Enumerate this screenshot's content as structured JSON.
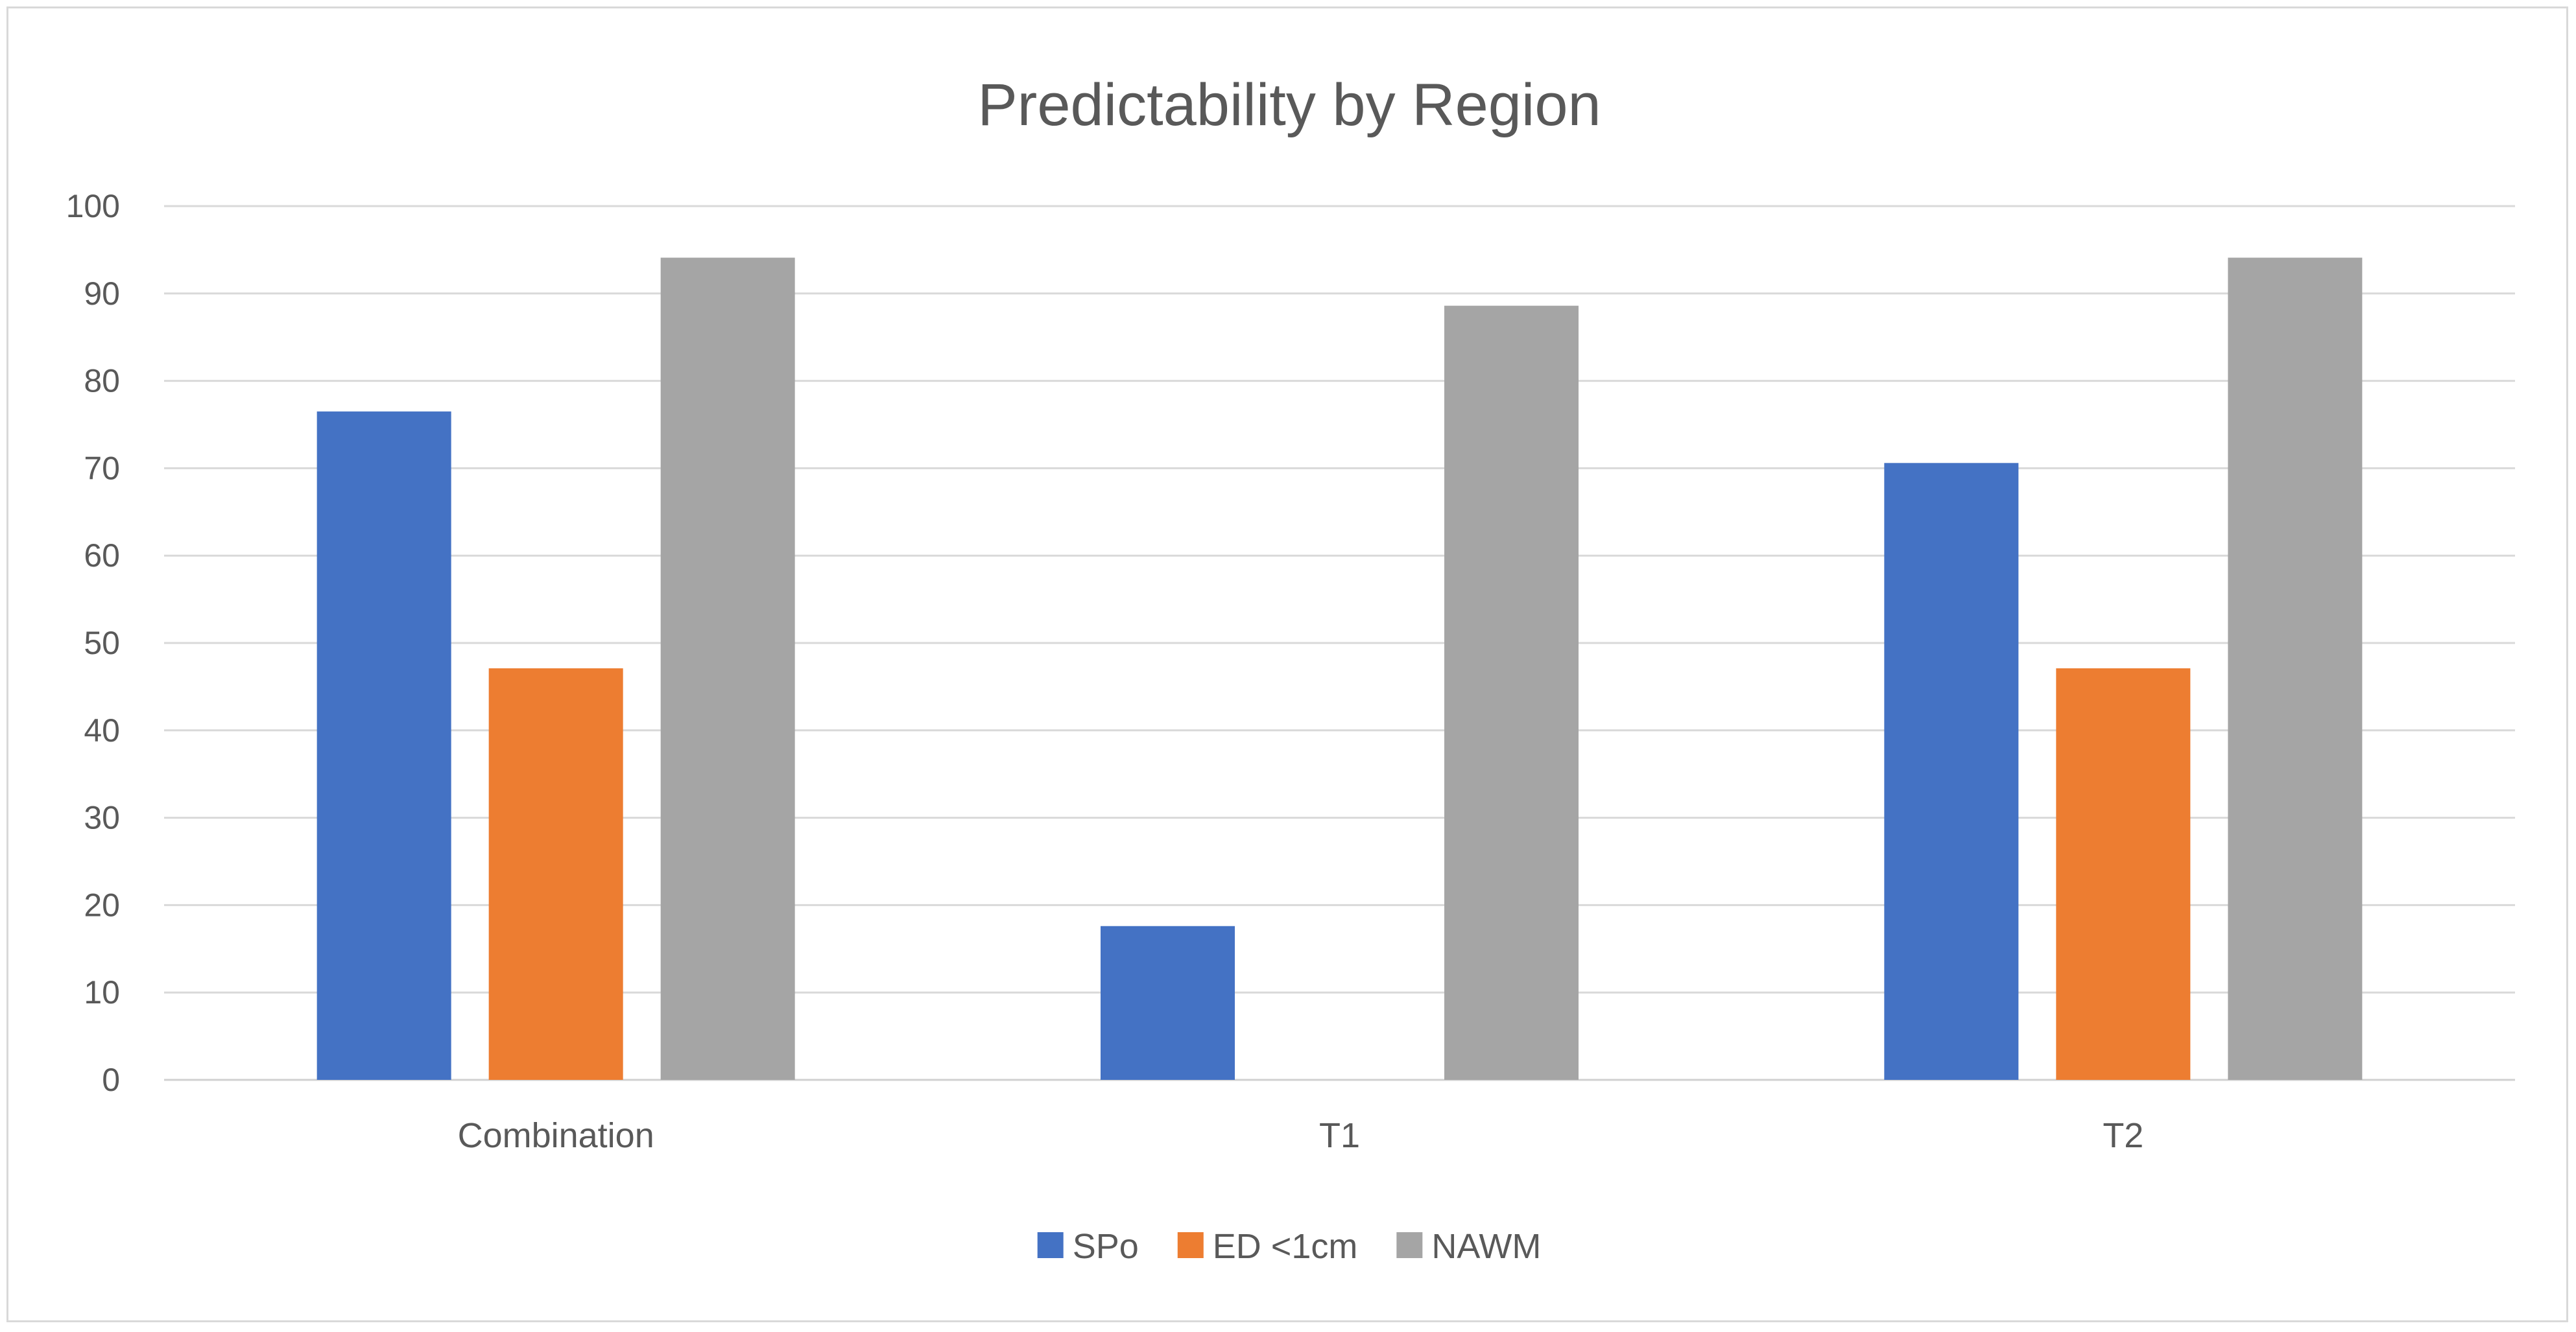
{
  "chart_data": {
    "type": "bar",
    "title": "Predictability by Region",
    "xlabel": "",
    "ylabel": "",
    "ylim": [
      0,
      100
    ],
    "yticks": [
      0,
      10,
      20,
      30,
      40,
      50,
      60,
      70,
      80,
      90,
      100
    ],
    "grid": true,
    "legend_position": "bottom",
    "categories": [
      "Combination",
      "T1",
      "T2"
    ],
    "series": [
      {
        "name": "SPo",
        "color": "#4472c4",
        "values": [
          76.5,
          17.6,
          70.6
        ]
      },
      {
        "name": "ED <1cm",
        "color": "#ed7d31",
        "values": [
          47.1,
          0,
          47.1
        ]
      },
      {
        "name": "NAWM",
        "color": "#a5a5a5",
        "values": [
          94.1,
          88.6,
          94.1
        ]
      }
    ]
  }
}
